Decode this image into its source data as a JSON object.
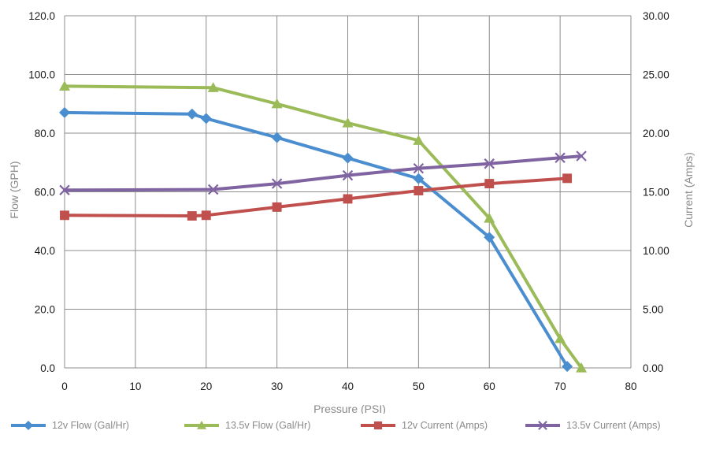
{
  "chart_data": {
    "type": "line",
    "xlabel": "Pressure (PSI)",
    "ylabel": "Flow (GPH)",
    "y2label": "Current (Amps)",
    "xlim": [
      0,
      80
    ],
    "ylim": [
      0,
      120
    ],
    "y2lim": [
      0,
      30
    ],
    "x_ticks": [
      "0",
      "10",
      "20",
      "30",
      "40",
      "50",
      "60",
      "70",
      "80"
    ],
    "y_ticks": [
      "0.0",
      "20.0",
      "40.0",
      "60.0",
      "80.0",
      "100.0",
      "120.0"
    ],
    "y2_ticks": [
      "0.00",
      "5.00",
      "10.00",
      "15.00",
      "20.00",
      "25.00",
      "30.00"
    ],
    "grid": true,
    "legend_position": "bottom",
    "series": [
      {
        "name": "12v Flow (Gal/Hr)",
        "axis": "left",
        "color": "#4a8ecf",
        "marker": "diamond",
        "points": [
          [
            0,
            87
          ],
          [
            18,
            86.5
          ],
          [
            20,
            85
          ],
          [
            30,
            78.5
          ],
          [
            40,
            71.5
          ],
          [
            50,
            64.5
          ],
          [
            60,
            44.5
          ],
          [
            71,
            0.5
          ]
        ]
      },
      {
        "name": "13.5v Flow (Gal/Hr)",
        "axis": "left",
        "color": "#9bbb59",
        "marker": "triangle",
        "points": [
          [
            0,
            96
          ],
          [
            21,
            95.5
          ],
          [
            30,
            90
          ],
          [
            40,
            83.5
          ],
          [
            50,
            77.5
          ],
          [
            60,
            51
          ],
          [
            70,
            10
          ],
          [
            73,
            0
          ]
        ]
      },
      {
        "name": "12v Current (Amps)",
        "axis": "right",
        "color": "#c0504d",
        "marker": "square",
        "points": [
          [
            0,
            13.0
          ],
          [
            18,
            12.95
          ],
          [
            20,
            13.0
          ],
          [
            30,
            13.7
          ],
          [
            40,
            14.4
          ],
          [
            50,
            15.1
          ],
          [
            60,
            15.7
          ],
          [
            71,
            16.15
          ]
        ]
      },
      {
        "name": "13.5v Current (Amps)",
        "axis": "right",
        "color": "#8064a2",
        "marker": "x",
        "points": [
          [
            0,
            15.15
          ],
          [
            21,
            15.2
          ],
          [
            30,
            15.7
          ],
          [
            40,
            16.4
          ],
          [
            50,
            17.0
          ],
          [
            60,
            17.4
          ],
          [
            70,
            17.9
          ],
          [
            73,
            18.05
          ]
        ]
      }
    ]
  }
}
